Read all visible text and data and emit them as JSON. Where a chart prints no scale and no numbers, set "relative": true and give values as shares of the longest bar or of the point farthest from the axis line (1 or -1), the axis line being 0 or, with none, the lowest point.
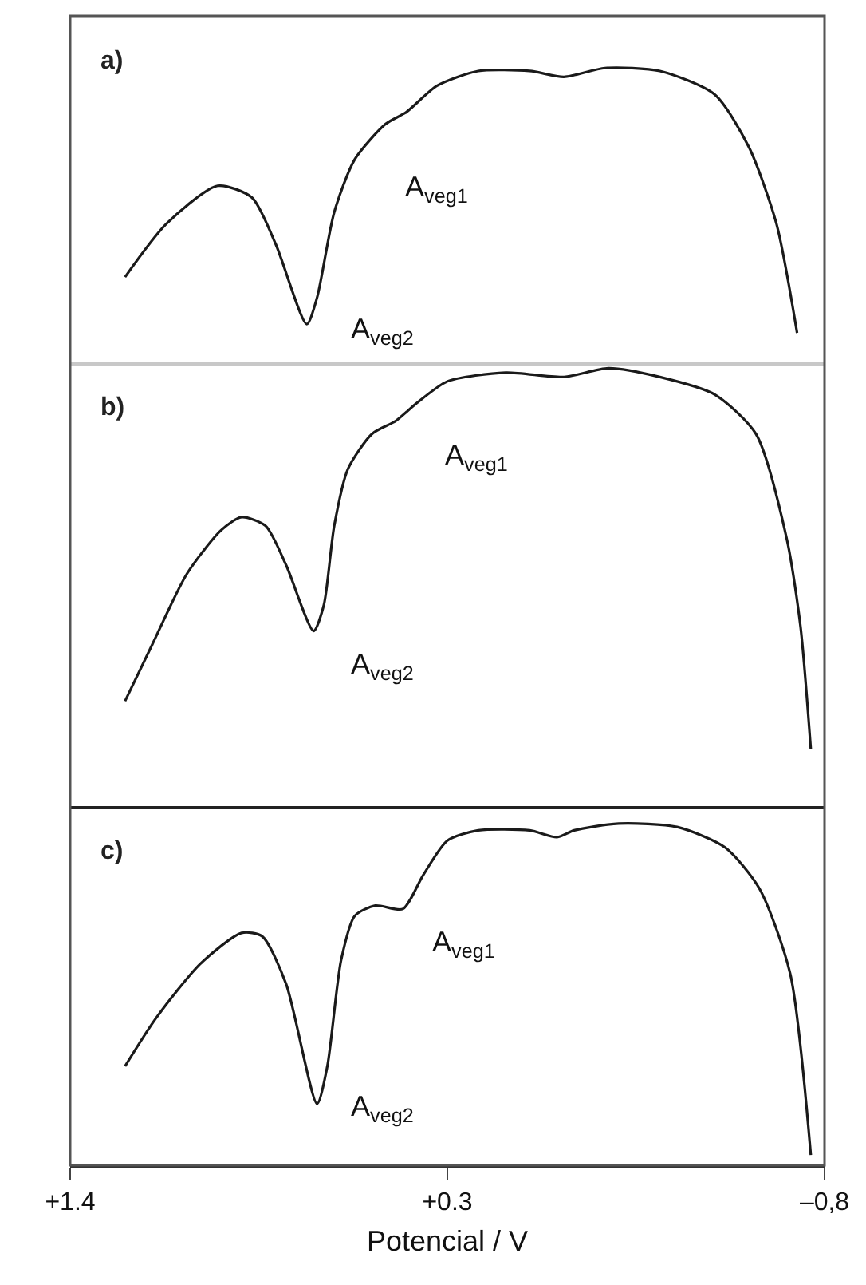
{
  "chart_data": [
    {
      "type": "line",
      "title": "a)",
      "relative": true,
      "color": "#1a1a1a",
      "xlim": [
        1.4,
        -0.8
      ],
      "tick_labels": false,
      "x": [
        1.24,
        1.12,
        0.97,
        0.87,
        0.8,
        0.71,
        0.68,
        0.63,
        0.57,
        0.48,
        0.42,
        0.33,
        0.21,
        0.06,
        -0.04,
        -0.16,
        -0.32,
        -0.48,
        -0.58,
        -0.66,
        -0.72
      ],
      "values": [
        0.29,
        0.47,
        0.6,
        0.56,
        0.4,
        0.13,
        0.22,
        0.51,
        0.69,
        0.81,
        0.85,
        0.94,
        0.99,
        0.99,
        0.97,
        1.0,
        0.99,
        0.91,
        0.73,
        0.47,
        0.1
      ],
      "annotations": [
        "A$_{veg1}$",
        "A$_{veg2}$"
      ]
    },
    {
      "type": "line",
      "title": "b)",
      "relative": true,
      "color": "#1a1a1a",
      "xlim": [
        1.4,
        -0.8
      ],
      "tick_labels": false,
      "x": [
        1.24,
        1.16,
        1.06,
        0.96,
        0.9,
        0.83,
        0.77,
        0.69,
        0.66,
        0.63,
        0.59,
        0.52,
        0.45,
        0.39,
        0.3,
        0.13,
        -0.04,
        -0.17,
        -0.32,
        -0.48,
        -0.6,
        -0.69,
        -0.73,
        -0.76
      ],
      "values": [
        0.24,
        0.37,
        0.53,
        0.63,
        0.66,
        0.64,
        0.55,
        0.4,
        0.46,
        0.64,
        0.77,
        0.85,
        0.88,
        0.92,
        0.97,
        0.99,
        0.98,
        1.0,
        0.98,
        0.94,
        0.85,
        0.61,
        0.41,
        0.13
      ],
      "annotations": [
        "A$_{veg1}$",
        "A$_{veg2}$"
      ]
    },
    {
      "type": "line",
      "title": "c)",
      "relative": true,
      "color": "#1a1a1a",
      "xlim": [
        1.4,
        -0.8
      ],
      "tick_labels": "x",
      "xlabel": "Potencial / V",
      "xticks": [
        {
          "value": 1.4,
          "label": "+1.4"
        },
        {
          "value": 0.3,
          "label": "+0.3"
        },
        {
          "value": -0.8,
          "label": "–0,8"
        }
      ],
      "x": [
        1.24,
        1.15,
        1.02,
        0.9,
        0.84,
        0.77,
        0.68,
        0.65,
        0.61,
        0.57,
        0.51,
        0.43,
        0.37,
        0.3,
        0.21,
        0.06,
        -0.02,
        -0.07,
        -0.2,
        -0.37,
        -0.51,
        -0.61,
        -0.7,
        -0.76
      ],
      "values": [
        0.29,
        0.43,
        0.59,
        0.68,
        0.67,
        0.53,
        0.18,
        0.29,
        0.6,
        0.73,
        0.76,
        0.75,
        0.85,
        0.95,
        0.98,
        0.98,
        0.96,
        0.98,
        1.0,
        0.99,
        0.93,
        0.81,
        0.56,
        0.03
      ],
      "annotations": [
        "A$_{veg1}$",
        "A$_{veg2}$"
      ]
    }
  ]
}
